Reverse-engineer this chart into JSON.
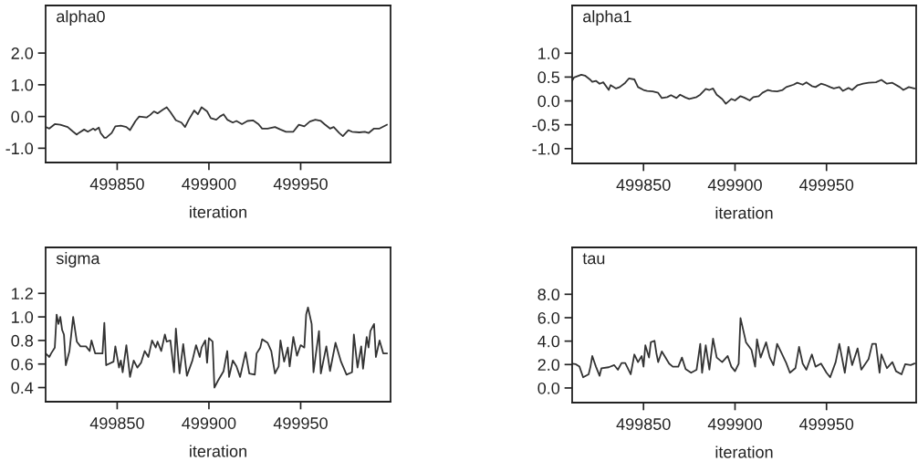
{
  "chart_data": [
    {
      "type": "line",
      "title": "alpha0",
      "xlabel": "iteration",
      "xlim": [
        499811,
        499999
      ],
      "xticks": [
        499850,
        499900,
        499950
      ],
      "ylim": [
        -1.45,
        3.5
      ],
      "yticks": [
        {
          "value": 2,
          "label": "2.0"
        },
        {
          "value": 1,
          "label": "1.0"
        },
        {
          "value": 0,
          "label": "0.0"
        },
        {
          "value": -1,
          "label": "-1.0"
        }
      ],
      "grid": false,
      "legend": false,
      "marker": "none",
      "line_style": "solid",
      "series": [
        {
          "color": "#333333",
          "x": [
            499811,
            499813,
            499816,
            499819,
            499823,
            499826,
            499828,
            499829,
            499832,
            499834,
            499837,
            499838,
            499840,
            499841,
            499843,
            499844,
            499847,
            499849,
            499852,
            499855,
            499857,
            499860,
            499862,
            499866,
            499868,
            499870,
            499872,
            499875,
            499877,
            499879,
            499882,
            499885,
            499887,
            499889,
            499892,
            499894,
            499896,
            499899,
            499901,
            499904,
            499906,
            499908,
            499910,
            499913,
            499915,
            499918,
            499921,
            499924,
            499927,
            499929,
            499932,
            499936,
            499939,
            499942,
            499946,
            499949,
            499952,
            499955,
            499958,
            499961,
            499963,
            499966,
            499968,
            499971,
            499973,
            499976,
            499978,
            499982,
            499985,
            499987,
            499990,
            499993,
            499997
          ],
          "values": [
            -0.33,
            -0.38,
            -0.24,
            -0.26,
            -0.33,
            -0.48,
            -0.57,
            -0.52,
            -0.41,
            -0.48,
            -0.38,
            -0.43,
            -0.35,
            -0.52,
            -0.67,
            -0.67,
            -0.52,
            -0.31,
            -0.29,
            -0.33,
            -0.43,
            -0.14,
            0.0,
            -0.03,
            0.05,
            0.16,
            0.1,
            0.22,
            0.29,
            0.14,
            -0.12,
            -0.19,
            -0.33,
            -0.1,
            0.19,
            0.07,
            0.29,
            0.16,
            -0.05,
            -0.1,
            0.0,
            0.07,
            -0.1,
            -0.19,
            -0.14,
            -0.24,
            -0.14,
            -0.12,
            -0.24,
            -0.38,
            -0.38,
            -0.33,
            -0.41,
            -0.48,
            -0.48,
            -0.26,
            -0.31,
            -0.16,
            -0.1,
            -0.14,
            -0.24,
            -0.38,
            -0.33,
            -0.52,
            -0.62,
            -0.43,
            -0.48,
            -0.5,
            -0.48,
            -0.52,
            -0.38,
            -0.38,
            -0.26
          ]
        }
      ]
    },
    {
      "type": "line",
      "title": "alpha1",
      "xlabel": "iteration",
      "xlim": [
        499811,
        499999
      ],
      "xticks": [
        499850,
        499900,
        499950
      ],
      "ylim": [
        -1.31,
        2.0
      ],
      "yticks": [
        {
          "value": 1,
          "label": "1.0"
        },
        {
          "value": 0.5,
          "label": "0.5"
        },
        {
          "value": 0,
          "label": "0.0"
        },
        {
          "value": -0.5,
          "label": "-0.5"
        },
        {
          "value": -1,
          "label": "-1.0"
        }
      ],
      "grid": false,
      "legend": false,
      "marker": "none",
      "line_style": "solid",
      "series": [
        {
          "color": "#333333",
          "x": [
            499811,
            499812,
            499814,
            499816,
            499818,
            499821,
            499822,
            499824,
            499826,
            499828,
            499831,
            499832,
            499835,
            499837,
            499840,
            499842,
            499845,
            499847,
            499850,
            499852,
            499855,
            499858,
            499860,
            499863,
            499865,
            499868,
            499870,
            499873,
            499875,
            499879,
            499881,
            499884,
            499886,
            499888,
            499890,
            499893,
            499895,
            499898,
            499900,
            499903,
            499905,
            499908,
            499910,
            499913,
            499915,
            499918,
            499920,
            499923,
            499926,
            499928,
            499932,
            499934,
            499937,
            499939,
            499942,
            499944,
            499947,
            499949,
            499952,
            499954,
            499957,
            499959,
            499962,
            499964,
            499967,
            499970,
            499973,
            499977,
            499980,
            499983,
            499986,
            499990,
            499992,
            499995,
            499998
          ],
          "values": [
            0.42,
            0.49,
            0.52,
            0.55,
            0.53,
            0.44,
            0.4,
            0.42,
            0.36,
            0.39,
            0.23,
            0.33,
            0.26,
            0.29,
            0.38,
            0.47,
            0.45,
            0.29,
            0.23,
            0.21,
            0.2,
            0.17,
            0.06,
            0.08,
            0.12,
            0.06,
            0.13,
            0.07,
            0.04,
            0.08,
            0.13,
            0.25,
            0.23,
            0.26,
            0.13,
            0.04,
            -0.06,
            0.04,
            0.01,
            0.1,
            0.07,
            0.01,
            0.08,
            0.1,
            0.17,
            0.23,
            0.21,
            0.2,
            0.23,
            0.29,
            0.34,
            0.38,
            0.34,
            0.39,
            0.31,
            0.29,
            0.36,
            0.34,
            0.29,
            0.26,
            0.29,
            0.21,
            0.27,
            0.23,
            0.33,
            0.36,
            0.38,
            0.39,
            0.44,
            0.36,
            0.38,
            0.29,
            0.23,
            0.29,
            0.26
          ]
        }
      ]
    },
    {
      "type": "line",
      "title": "sigma",
      "xlabel": "iteration",
      "xlim": [
        499811,
        499999
      ],
      "xticks": [
        499850,
        499900,
        499950
      ],
      "ylim": [
        0.28,
        1.59
      ],
      "yticks": [
        {
          "value": 1.2,
          "label": "1.2"
        },
        {
          "value": 1.0,
          "label": "1.0"
        },
        {
          "value": 0.8,
          "label": "0.8"
        },
        {
          "value": 0.6,
          "label": "0.6"
        },
        {
          "value": 0.4,
          "label": "0.4"
        }
      ],
      "grid": false,
      "legend": false,
      "marker": "none",
      "line_style": "solid",
      "series": [
        {
          "color": "#333333",
          "x": [
            499811,
            499813,
            499814,
            499816,
            499817,
            499818,
            499819,
            499820,
            499821,
            499822,
            499824,
            499826,
            499828,
            499830,
            499833,
            499835,
            499836,
            499838,
            499842,
            499843,
            499844,
            499848,
            499849,
            499851,
            499852,
            499853,
            499855,
            499857,
            499859,
            499861,
            499863,
            499865,
            499867,
            499869,
            499871,
            499872,
            499874,
            499876,
            499877,
            499879,
            499881,
            499882,
            499884,
            499886,
            499888,
            499891,
            499893,
            499895,
            499896,
            499898,
            499899,
            499900,
            499902,
            499903,
            499905,
            499908,
            499910,
            499911,
            499913,
            499915,
            499917,
            499920,
            499922,
            499925,
            499926,
            499928,
            499929,
            499932,
            499934,
            499936,
            499938,
            499939,
            499941,
            499943,
            499944,
            499946,
            499948,
            499950,
            499952,
            499953,
            499954,
            499956,
            499957,
            499958,
            499960,
            499961,
            499964,
            499966,
            499969,
            499972,
            499975,
            499978,
            499979,
            499981,
            499983,
            499984,
            499986,
            499987,
            499988,
            499990,
            499991,
            499993,
            499995,
            499997
          ],
          "values": [
            0.69,
            0.66,
            0.69,
            0.74,
            1.02,
            0.94,
            1.0,
            0.89,
            0.85,
            0.59,
            0.71,
            1.0,
            0.79,
            0.75,
            0.75,
            0.71,
            0.8,
            0.69,
            0.69,
            0.95,
            0.59,
            0.62,
            0.75,
            0.57,
            0.63,
            0.53,
            0.76,
            0.49,
            0.63,
            0.57,
            0.61,
            0.71,
            0.66,
            0.8,
            0.74,
            0.79,
            0.71,
            0.85,
            0.79,
            0.8,
            0.53,
            0.9,
            0.52,
            0.77,
            0.5,
            0.63,
            0.76,
            0.66,
            0.74,
            0.8,
            0.61,
            0.82,
            0.79,
            0.4,
            0.46,
            0.54,
            0.71,
            0.49,
            0.63,
            0.58,
            0.49,
            0.7,
            0.52,
            0.51,
            0.69,
            0.74,
            0.81,
            0.78,
            0.71,
            0.52,
            0.58,
            0.8,
            0.62,
            0.74,
            0.58,
            0.83,
            0.67,
            0.76,
            0.74,
            1.02,
            1.08,
            0.94,
            0.53,
            0.65,
            0.88,
            0.52,
            0.75,
            0.54,
            0.78,
            0.62,
            0.51,
            0.53,
            0.85,
            0.57,
            0.75,
            0.56,
            0.83,
            0.74,
            0.88,
            0.94,
            0.66,
            0.8,
            0.69,
            0.69
          ]
        }
      ]
    },
    {
      "type": "line",
      "title": "tau",
      "xlabel": "iteration",
      "xlim": [
        499811,
        499999
      ],
      "xticks": [
        499850,
        499900,
        499950
      ],
      "ylim": [
        -1.25,
        12.0
      ],
      "yticks": [
        {
          "value": 8,
          "label": "8.0"
        },
        {
          "value": 6,
          "label": "6.0"
        },
        {
          "value": 4,
          "label": "4.0"
        },
        {
          "value": 2,
          "label": "2.0"
        },
        {
          "value": 0,
          "label": "0.0"
        }
      ],
      "grid": false,
      "legend": false,
      "marker": "none",
      "line_style": "solid",
      "series": [
        {
          "color": "#333333",
          "x": [
            499811,
            499813,
            499815,
            499817,
            499820,
            499821,
            499822,
            499824,
            499826,
            499827,
            499831,
            499834,
            499836,
            499838,
            499840,
            499843,
            499845,
            499847,
            499849,
            499850,
            499851,
            499853,
            499854,
            499856,
            499857,
            499858,
            499860,
            499861,
            499864,
            499866,
            499869,
            499871,
            499873,
            499876,
            499879,
            499881,
            499882,
            499884,
            499886,
            499888,
            499890,
            499893,
            499896,
            499898,
            499900,
            499902,
            499903,
            499906,
            499909,
            499911,
            499912,
            499914,
            499917,
            499919,
            499921,
            499923,
            499925,
            499928,
            499930,
            499933,
            499935,
            499937,
            499939,
            499942,
            499944,
            499947,
            499950,
            499952,
            499955,
            499957,
            499960,
            499962,
            499964,
            499967,
            499969,
            499973,
            499975,
            499977,
            499979,
            499980,
            499983,
            499986,
            499988,
            499991,
            499993,
            499996,
            499998
          ],
          "values": [
            2.08,
            2.03,
            1.82,
            0.91,
            1.17,
            1.82,
            2.73,
            1.82,
            1.04,
            1.69,
            1.77,
            1.95,
            1.56,
            2.13,
            2.13,
            1.17,
            2.86,
            2.21,
            2.73,
            1.82,
            3.64,
            2.6,
            3.9,
            4.03,
            3.0,
            2.21,
            3.12,
            2.86,
            2.08,
            1.82,
            1.82,
            2.6,
            1.61,
            1.3,
            1.56,
            3.77,
            1.3,
            3.64,
            1.56,
            4.21,
            2.6,
            2.21,
            2.73,
            1.82,
            1.43,
            2.08,
            5.97,
            3.9,
            3.25,
            1.82,
            4.16,
            2.6,
            3.9,
            2.6,
            1.95,
            3.77,
            3.12,
            2.13,
            1.3,
            1.69,
            3.51,
            2.08,
            1.56,
            2.86,
            1.82,
            2.08,
            1.3,
            0.91,
            2.21,
            3.77,
            1.3,
            3.51,
            1.95,
            3.38,
            1.56,
            2.47,
            3.77,
            3.77,
            1.3,
            2.86,
            1.69,
            2.21,
            1.43,
            1.17,
            2.03,
            1.95,
            2.08
          ]
        }
      ]
    }
  ]
}
